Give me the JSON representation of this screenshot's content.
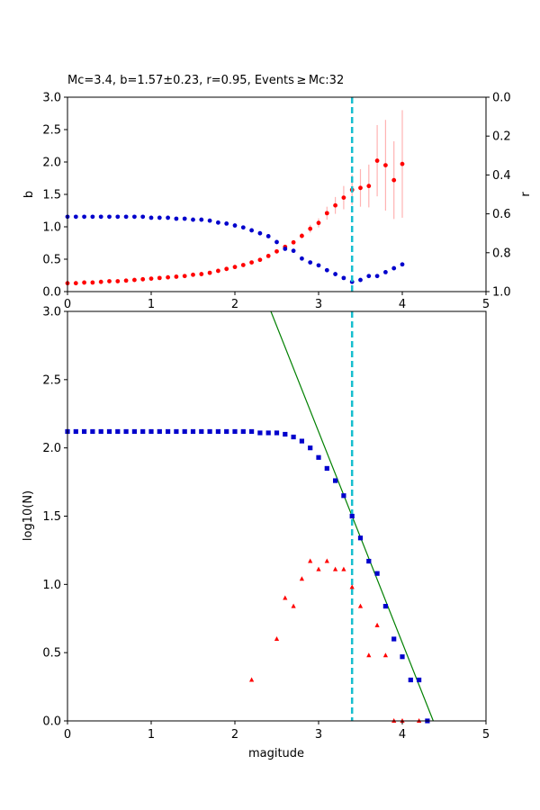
{
  "chart_data": [
    {
      "type": "scatter",
      "title": "Mc=3.4, b=1.57±0.23, r=0.95, Events ≥ Mc:32",
      "xlabel": "",
      "ylabel": "b",
      "ylabel_right": "r",
      "xlim": [
        0,
        5
      ],
      "ylim": [
        0,
        3
      ],
      "ylim_right": [
        1.0,
        0.0
      ],
      "xticks": [
        "0",
        "1",
        "2",
        "3",
        "4",
        "5"
      ],
      "yticks": [
        "0.0",
        "0.5",
        "1.0",
        "1.5",
        "2.0",
        "2.5",
        "3.0"
      ],
      "yticks_right": [
        "0.0",
        "0.2",
        "0.4",
        "0.6",
        "0.8",
        "1.0"
      ],
      "mc_line": 3.4,
      "series": [
        {
          "color": "#ff0000",
          "marker": "circle",
          "axis": "left",
          "x": [
            0.0,
            0.1,
            0.2,
            0.3,
            0.4,
            0.5,
            0.6,
            0.7,
            0.8,
            0.9,
            1.0,
            1.1,
            1.2,
            1.3,
            1.4,
            1.5,
            1.6,
            1.7,
            1.8,
            1.9,
            2.0,
            2.1,
            2.2,
            2.3,
            2.4,
            2.5,
            2.6,
            2.7,
            2.8,
            2.9,
            3.0,
            3.1,
            3.2,
            3.3,
            3.4,
            3.5,
            3.6,
            3.7,
            3.8,
            3.9,
            4.0
          ],
          "y": [
            0.13,
            0.13,
            0.14,
            0.14,
            0.15,
            0.16,
            0.16,
            0.17,
            0.18,
            0.19,
            0.2,
            0.21,
            0.22,
            0.23,
            0.24,
            0.26,
            0.27,
            0.29,
            0.32,
            0.35,
            0.38,
            0.41,
            0.45,
            0.49,
            0.55,
            0.62,
            0.69,
            0.76,
            0.86,
            0.97,
            1.06,
            1.21,
            1.33,
            1.45,
            1.57,
            1.6,
            1.63,
            2.02,
            1.95,
            1.72,
            1.97
          ],
          "err": [
            0.005,
            0.005,
            0.005,
            0.005,
            0.005,
            0.005,
            0.005,
            0.005,
            0.005,
            0.005,
            0.005,
            0.005,
            0.005,
            0.005,
            0.005,
            0.005,
            0.005,
            0.005,
            0.005,
            0.005,
            0.005,
            0.01,
            0.01,
            0.01,
            0.01,
            0.01,
            0.02,
            0.03,
            0.04,
            0.06,
            0.07,
            0.1,
            0.13,
            0.18,
            0.23,
            0.29,
            0.33,
            0.55,
            0.7,
            0.6,
            0.83
          ]
        },
        {
          "color": "#0000cc",
          "marker": "circle",
          "axis": "right",
          "x": [
            0.0,
            0.1,
            0.2,
            0.3,
            0.4,
            0.5,
            0.6,
            0.7,
            0.8,
            0.9,
            1.0,
            1.1,
            1.2,
            1.3,
            1.4,
            1.5,
            1.6,
            1.7,
            1.8,
            1.9,
            2.0,
            2.1,
            2.2,
            2.3,
            2.4,
            2.5,
            2.6,
            2.7,
            2.8,
            2.9,
            3.0,
            3.1,
            3.2,
            3.3,
            3.4,
            3.5,
            3.6,
            3.7,
            3.8,
            3.9,
            4.0
          ],
          "y": [
            0.615,
            0.615,
            0.615,
            0.615,
            0.615,
            0.615,
            0.615,
            0.615,
            0.615,
            0.615,
            0.62,
            0.62,
            0.62,
            0.625,
            0.625,
            0.63,
            0.63,
            0.635,
            0.645,
            0.65,
            0.66,
            0.67,
            0.685,
            0.7,
            0.715,
            0.745,
            0.78,
            0.79,
            0.83,
            0.85,
            0.865,
            0.89,
            0.91,
            0.93,
            0.95,
            0.94,
            0.92,
            0.92,
            0.9,
            0.88,
            0.86
          ]
        }
      ]
    },
    {
      "type": "scatter",
      "title": "",
      "xlabel": "magitude",
      "ylabel": "log10(N)",
      "xlim": [
        0,
        5
      ],
      "ylim": [
        0,
        3
      ],
      "xticks": [
        "0",
        "1",
        "2",
        "3",
        "4",
        "5"
      ],
      "yticks": [
        "0.0",
        "0.5",
        "1.0",
        "1.5",
        "2.0",
        "2.5",
        "3.0"
      ],
      "mc_line": 3.4,
      "fit_line": {
        "color": "#008000",
        "x": [
          2.43,
          4.37
        ],
        "y": [
          3.0,
          0.0
        ]
      },
      "series": [
        {
          "color": "#0000cc",
          "marker": "square",
          "x": [
            0.0,
            0.1,
            0.2,
            0.3,
            0.4,
            0.5,
            0.6,
            0.7,
            0.8,
            0.9,
            1.0,
            1.1,
            1.2,
            1.3,
            1.4,
            1.5,
            1.6,
            1.7,
            1.8,
            1.9,
            2.0,
            2.1,
            2.2,
            2.3,
            2.4,
            2.5,
            2.6,
            2.7,
            2.8,
            2.9,
            3.0,
            3.1,
            3.2,
            3.3,
            3.4,
            3.5,
            3.6,
            3.7,
            3.8,
            3.9,
            4.0,
            4.1,
            4.2,
            4.3
          ],
          "y": [
            2.12,
            2.12,
            2.12,
            2.12,
            2.12,
            2.12,
            2.12,
            2.12,
            2.12,
            2.12,
            2.12,
            2.12,
            2.12,
            2.12,
            2.12,
            2.12,
            2.12,
            2.12,
            2.12,
            2.12,
            2.12,
            2.12,
            2.12,
            2.11,
            2.11,
            2.11,
            2.1,
            2.08,
            2.05,
            2.0,
            1.93,
            1.85,
            1.76,
            1.65,
            1.5,
            1.34,
            1.17,
            1.08,
            0.84,
            0.6,
            0.47,
            0.3,
            0.3,
            0.0
          ]
        },
        {
          "color": "#ff0000",
          "marker": "triangle",
          "x": [
            2.2,
            2.5,
            2.6,
            2.7,
            2.8,
            2.9,
            3.0,
            3.1,
            3.2,
            3.3,
            3.4,
            3.5,
            3.6,
            3.7,
            3.8,
            3.9,
            4.0,
            4.2
          ],
          "y": [
            0.3,
            0.6,
            0.9,
            0.84,
            1.04,
            1.17,
            1.11,
            1.17,
            1.11,
            1.11,
            0.98,
            0.84,
            0.48,
            0.7,
            0.48,
            0.0,
            0.0,
            0.0
          ]
        }
      ]
    }
  ]
}
